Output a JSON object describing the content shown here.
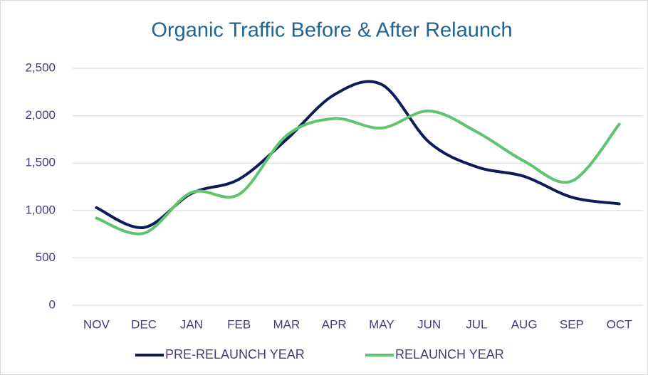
{
  "chart_data": {
    "type": "line",
    "title": "Organic Traffic Before & After Relaunch",
    "categories": [
      "NOV",
      "DEC",
      "JAN",
      "FEB",
      "MAR",
      "APR",
      "MAY",
      "JUN",
      "JUL",
      "AUG",
      "SEP",
      "OCT"
    ],
    "series": [
      {
        "name": "PRE-RELAUNCH YEAR",
        "color": "#0e1b5a",
        "values": [
          1030,
          820,
          1180,
          1330,
          1750,
          2220,
          2330,
          1720,
          1460,
          1360,
          1140,
          1070
        ]
      },
      {
        "name": "RELAUNCH YEAR",
        "color": "#5ec46e",
        "values": [
          920,
          760,
          1190,
          1170,
          1790,
          1970,
          1870,
          2050,
          1830,
          1520,
          1310,
          1910
        ]
      }
    ],
    "ylim": [
      0,
      2500
    ],
    "yticks": [
      0,
      500,
      {
        "value": 1000,
        "label": "1,000"
      },
      {
        "value": 1500,
        "label": "1,500"
      },
      {
        "value": 2000,
        "label": "2,000"
      },
      {
        "value": 2500,
        "label": "2,500"
      }
    ],
    "grid": true,
    "legend": "bottom"
  }
}
